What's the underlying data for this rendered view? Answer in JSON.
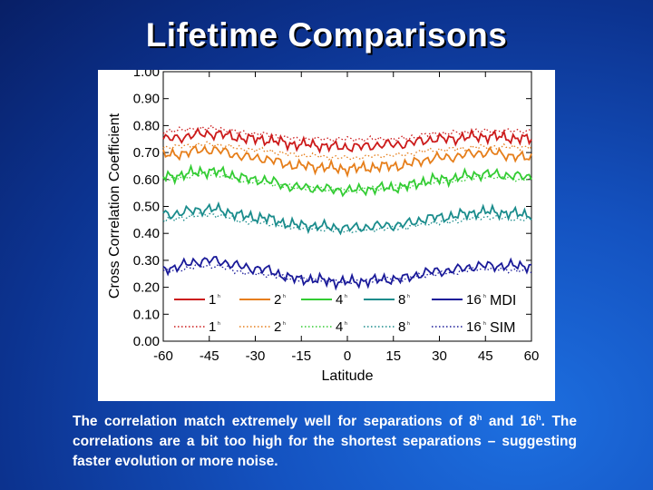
{
  "slide": {
    "title": "Lifetime Comparisons"
  },
  "caption": {
    "part1": "The correlation match extremely well for separations of 8",
    "sup1": "h",
    "part2": " and 16",
    "sup2": "h",
    "part3": ". The correlations are a bit too high for the shortest separations – suggesting faster evolution or more noise."
  },
  "chart_data": {
    "type": "line",
    "title": "",
    "xlabel": "Latitude",
    "ylabel": "Cross Correlation Coefficient",
    "xlim": [
      -60,
      60
    ],
    "ylim": [
      0.0,
      1.0
    ],
    "x_ticks": [
      "-60",
      "-45",
      "-30",
      "-15",
      "0",
      "15",
      "30",
      "45",
      "60"
    ],
    "y_ticks": [
      "0.00",
      "0.10",
      "0.20",
      "0.30",
      "0.40",
      "0.50",
      "0.60",
      "0.70",
      "0.80",
      "0.90",
      "1.00"
    ],
    "x": [
      -60,
      -45,
      -30,
      -15,
      0,
      15,
      30,
      45,
      60
    ],
    "series": [
      {
        "name": "1h MDI",
        "label": "1",
        "sup": "h",
        "group": "MDI",
        "style": "solid",
        "color": "#cc1a1a",
        "values": [
          0.75,
          0.77,
          0.75,
          0.73,
          0.72,
          0.73,
          0.75,
          0.76,
          0.75
        ]
      },
      {
        "name": "2h MDI",
        "label": "2",
        "sup": "h",
        "group": "MDI",
        "style": "solid",
        "color": "#e67e1a",
        "values": [
          0.69,
          0.71,
          0.68,
          0.65,
          0.64,
          0.65,
          0.68,
          0.7,
          0.68
        ]
      },
      {
        "name": "4h MDI",
        "label": "4",
        "sup": "h",
        "group": "MDI",
        "style": "solid",
        "color": "#33cc33",
        "values": [
          0.61,
          0.63,
          0.6,
          0.57,
          0.56,
          0.57,
          0.6,
          0.62,
          0.61
        ]
      },
      {
        "name": "8h MDI",
        "label": "8",
        "sup": "h",
        "group": "MDI",
        "style": "solid",
        "color": "#1a8c8c",
        "values": [
          0.47,
          0.49,
          0.46,
          0.43,
          0.42,
          0.43,
          0.46,
          0.48,
          0.47
        ]
      },
      {
        "name": "16h MDI",
        "label": "16",
        "sup": "h",
        "group": "MDI",
        "style": "solid",
        "color": "#1a1a99",
        "values": [
          0.27,
          0.3,
          0.27,
          0.23,
          0.22,
          0.23,
          0.26,
          0.28,
          0.28
        ]
      },
      {
        "name": "1h SIM",
        "label": "1",
        "sup": "h",
        "group": "SIM",
        "style": "dotted",
        "color": "#cc1a1a",
        "values": [
          0.78,
          0.79,
          0.77,
          0.75,
          0.75,
          0.75,
          0.77,
          0.78,
          0.78
        ]
      },
      {
        "name": "2h SIM",
        "label": "2",
        "sup": "h",
        "group": "SIM",
        "style": "dotted",
        "color": "#e67e1a",
        "values": [
          0.72,
          0.73,
          0.71,
          0.69,
          0.68,
          0.69,
          0.71,
          0.72,
          0.72
        ]
      },
      {
        "name": "4h SIM",
        "label": "4",
        "sup": "h",
        "group": "SIM",
        "style": "dotted",
        "color": "#33cc33",
        "values": [
          0.6,
          0.62,
          0.59,
          0.57,
          0.56,
          0.57,
          0.59,
          0.61,
          0.6
        ]
      },
      {
        "name": "8h SIM",
        "label": "8",
        "sup": "h",
        "group": "SIM",
        "style": "dotted",
        "color": "#1a8c8c",
        "values": [
          0.45,
          0.47,
          0.44,
          0.42,
          0.41,
          0.42,
          0.44,
          0.46,
          0.45
        ]
      },
      {
        "name": "16h SIM",
        "label": "16",
        "sup": "h",
        "group": "SIM",
        "style": "dotted",
        "color": "#1a1a99",
        "values": [
          0.26,
          0.28,
          0.25,
          0.23,
          0.22,
          0.23,
          0.25,
          0.27,
          0.26
        ]
      }
    ],
    "legend": {
      "placement": "bottom-inside",
      "rows": [
        {
          "group": "MDI",
          "label": "MDI"
        },
        {
          "group": "SIM",
          "label": "SIM"
        }
      ]
    }
  }
}
